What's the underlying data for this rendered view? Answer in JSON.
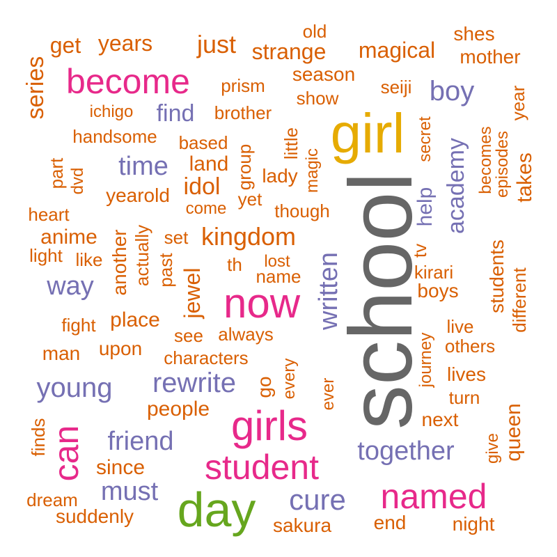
{
  "colors": {
    "orange": "#d95f02",
    "purple": "#7570b3",
    "pink": "#e7298a",
    "gray": "#666666",
    "gold": "#e6ab02",
    "green": "#66a61e"
  },
  "words": [
    {
      "id": "school",
      "text": "school"
    },
    {
      "id": "girl",
      "text": "girl"
    },
    {
      "id": "day",
      "text": "day"
    },
    {
      "id": "girls",
      "text": "girls"
    },
    {
      "id": "now",
      "text": "now"
    },
    {
      "id": "become",
      "text": "become"
    },
    {
      "id": "student",
      "text": "student"
    },
    {
      "id": "named",
      "text": "named"
    },
    {
      "id": "can",
      "text": "can"
    },
    {
      "id": "cure",
      "text": "cure"
    },
    {
      "id": "young",
      "text": "young"
    },
    {
      "id": "rewrite",
      "text": "rewrite"
    },
    {
      "id": "written",
      "text": "written"
    },
    {
      "id": "together",
      "text": "together"
    },
    {
      "id": "friend",
      "text": "friend"
    },
    {
      "id": "must",
      "text": "must"
    },
    {
      "id": "way",
      "text": "way"
    },
    {
      "id": "time",
      "text": "time"
    },
    {
      "id": "boy",
      "text": "boy"
    },
    {
      "id": "academy",
      "text": "academy"
    },
    {
      "id": "find",
      "text": "find"
    },
    {
      "id": "help",
      "text": "help"
    },
    {
      "id": "magical",
      "text": "magical"
    },
    {
      "id": "strange",
      "text": "strange"
    },
    {
      "id": "just",
      "text": "just"
    },
    {
      "id": "kingdom",
      "text": "kingdom"
    },
    {
      "id": "idol",
      "text": "idol"
    },
    {
      "id": "jewel",
      "text": "jewel"
    },
    {
      "id": "series",
      "text": "series"
    },
    {
      "id": "years",
      "text": "years"
    },
    {
      "id": "get",
      "text": "get"
    },
    {
      "id": "old",
      "text": "old"
    },
    {
      "id": "shes",
      "text": "shes"
    },
    {
      "id": "mother",
      "text": "mother"
    },
    {
      "id": "season",
      "text": "season"
    },
    {
      "id": "prism",
      "text": "prism"
    },
    {
      "id": "seiji",
      "text": "seiji"
    },
    {
      "id": "show",
      "text": "show"
    },
    {
      "id": "year",
      "text": "year"
    },
    {
      "id": "ichigo",
      "text": "ichigo"
    },
    {
      "id": "brother",
      "text": "brother"
    },
    {
      "id": "handsome",
      "text": "handsome"
    },
    {
      "id": "based",
      "text": "based"
    },
    {
      "id": "little",
      "text": "little"
    },
    {
      "id": "secret",
      "text": "secret"
    },
    {
      "id": "becomes",
      "text": "becomes"
    },
    {
      "id": "episodes",
      "text": "episodes"
    },
    {
      "id": "takes",
      "text": "takes"
    },
    {
      "id": "part",
      "text": "part"
    },
    {
      "id": "dvd",
      "text": "dvd"
    },
    {
      "id": "land",
      "text": "land"
    },
    {
      "id": "group",
      "text": "group"
    },
    {
      "id": "lady",
      "text": "lady"
    },
    {
      "id": "magic",
      "text": "magic"
    },
    {
      "id": "yearold",
      "text": "yearold"
    },
    {
      "id": "yet",
      "text": "yet"
    },
    {
      "id": "heart",
      "text": "heart"
    },
    {
      "id": "come",
      "text": "come"
    },
    {
      "id": "though",
      "text": "though"
    },
    {
      "id": "anime",
      "text": "anime"
    },
    {
      "id": "another",
      "text": "another"
    },
    {
      "id": "actually",
      "text": "actually"
    },
    {
      "id": "set",
      "text": "set"
    },
    {
      "id": "light",
      "text": "light"
    },
    {
      "id": "like",
      "text": "like"
    },
    {
      "id": "past",
      "text": "past"
    },
    {
      "id": "th",
      "text": "th"
    },
    {
      "id": "lost",
      "text": "lost"
    },
    {
      "id": "tv",
      "text": "tv"
    },
    {
      "id": "kirari",
      "text": "kirari"
    },
    {
      "id": "students",
      "text": "students"
    },
    {
      "id": "name",
      "text": "name"
    },
    {
      "id": "boys",
      "text": "boys"
    },
    {
      "id": "different",
      "text": "different"
    },
    {
      "id": "fight",
      "text": "fight"
    },
    {
      "id": "place",
      "text": "place"
    },
    {
      "id": "see",
      "text": "see"
    },
    {
      "id": "always",
      "text": "always"
    },
    {
      "id": "live",
      "text": "live"
    },
    {
      "id": "journey",
      "text": "journey"
    },
    {
      "id": "others",
      "text": "others"
    },
    {
      "id": "man",
      "text": "man"
    },
    {
      "id": "upon",
      "text": "upon"
    },
    {
      "id": "characters",
      "text": "characters"
    },
    {
      "id": "every",
      "text": "every"
    },
    {
      "id": "ever",
      "text": "ever"
    },
    {
      "id": "lives",
      "text": "lives"
    },
    {
      "id": "go",
      "text": "go"
    },
    {
      "id": "turn",
      "text": "turn"
    },
    {
      "id": "queen",
      "text": "queen"
    },
    {
      "id": "people",
      "text": "people"
    },
    {
      "id": "next",
      "text": "next"
    },
    {
      "id": "finds",
      "text": "finds"
    },
    {
      "id": "give",
      "text": "give"
    },
    {
      "id": "since",
      "text": "since"
    },
    {
      "id": "dream",
      "text": "dream"
    },
    {
      "id": "suddenly",
      "text": "suddenly"
    },
    {
      "id": "sakura",
      "text": "sakura"
    },
    {
      "id": "end",
      "text": "end"
    },
    {
      "id": "night",
      "text": "night"
    }
  ]
}
